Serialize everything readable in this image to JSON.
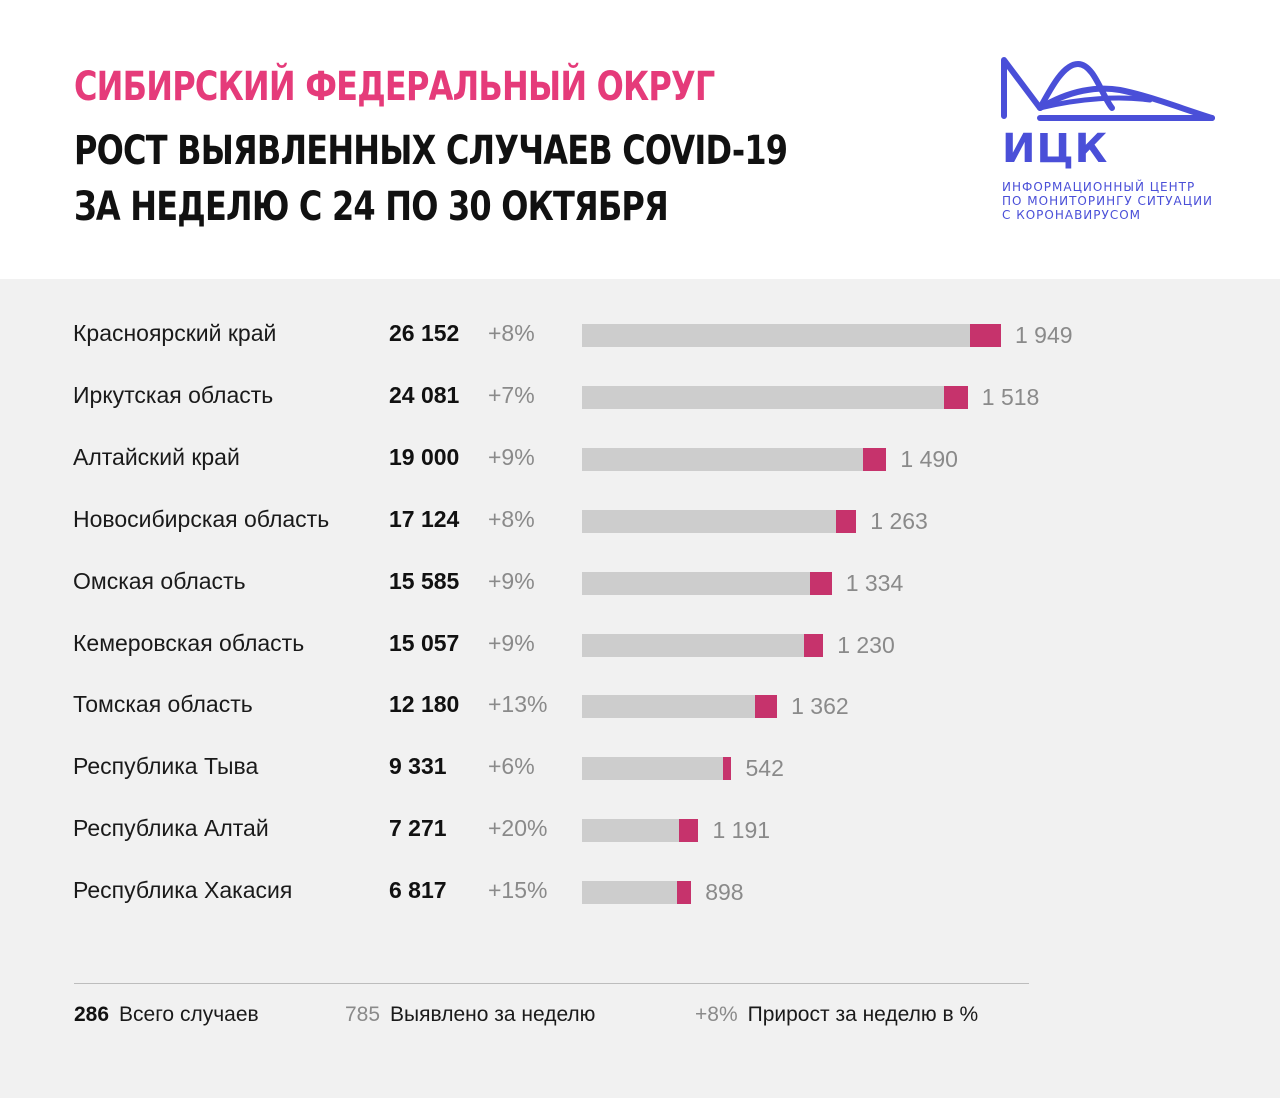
{
  "header": {
    "subtitle": "Сибирский федеральный округ",
    "title_line1": "Рост выявленных случаев COVID-19",
    "title_line2": "за неделю с 24 по 30 октября"
  },
  "logo": {
    "word": "ИЦК",
    "caption_line1": "Информационный центр",
    "caption_line2": "по мониторингу ситуации",
    "caption_line3": "с коронавирусом",
    "color": "#4a4fd8"
  },
  "colors": {
    "accent": "#e53b7a",
    "bar_total": "#cdcdcd",
    "bar_weekly": "#c6336c",
    "panel_bg": "#f1f1f1"
  },
  "chart_data": {
    "type": "bar",
    "orientation": "horizontal",
    "stacked": true,
    "categories": [
      "Красноярский край",
      "Иркутская область",
      "Алтайский край",
      "Новосибирская область",
      "Омская область",
      "Кемеровская область",
      "Томская область",
      "Республика Тыва",
      "Республика Алтай",
      "Республика Хакасия"
    ],
    "totals": [
      26152,
      24081,
      19000,
      17124,
      15585,
      15057,
      12180,
      9331,
      7271,
      6817
    ],
    "totals_label": [
      "26 152",
      "24 081",
      "19 000",
      "17 124",
      "15 585",
      "15 057",
      "12 180",
      "9 331",
      "7 271",
      "6 817"
    ],
    "weekly": [
      1949,
      1518,
      1490,
      1263,
      1334,
      1230,
      1362,
      542,
      1191,
      898
    ],
    "weekly_label": [
      "1 949",
      "1 518",
      "1 490",
      "1 263",
      "1 334",
      "1 230",
      "1 362",
      "542",
      "1 191",
      "898"
    ],
    "growth_label": [
      "+8%",
      "+7%",
      "+9%",
      "+8%",
      "+9%",
      "+9%",
      "+13%",
      "+6%",
      "+20%",
      "+15%"
    ],
    "legend": [
      {
        "sample": "286",
        "label": "Всего случаев"
      },
      {
        "sample": "785",
        "label": "Выявлено за неделю"
      },
      {
        "sample": "+8%",
        "label": "Прирост за неделю в %"
      }
    ]
  }
}
